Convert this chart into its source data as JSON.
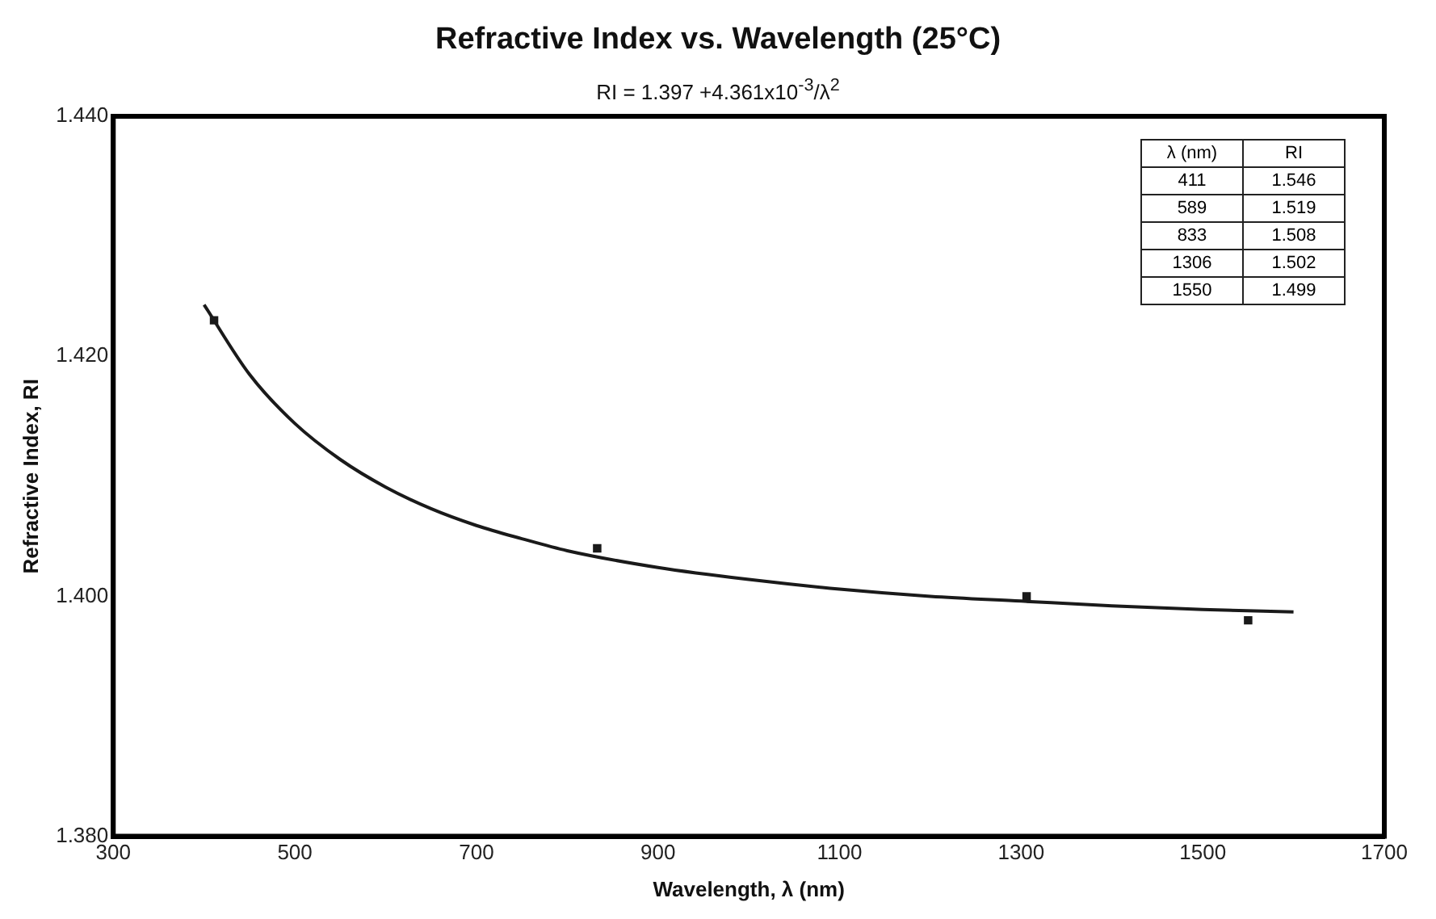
{
  "chart_data": {
    "type": "scatter",
    "title": "Refractive Index vs. Wavelength (25°C)",
    "subtitle": "RI = 1.397 +4.361x10$^{-3}$/λ$^{2}$",
    "xlabel": "Wavelength, λ (nm)",
    "ylabel": "Refractive Index, RI",
    "xlim": [
      300,
      1700
    ],
    "xticks": [
      300,
      500,
      700,
      900,
      1100,
      1300,
      1500,
      1700
    ],
    "ylim": [
      1.38,
      1.44
    ],
    "yticks": [
      {
        "value": 1.38,
        "label": "1.380"
      },
      {
        "value": 1.4,
        "label": "1.400"
      },
      {
        "value": 1.42,
        "label": "1.420"
      },
      {
        "value": 1.44,
        "label": "1.440"
      }
    ],
    "grid": false,
    "legend": false,
    "series": [
      {
        "color": "#1a1a1a",
        "marker": "square",
        "x": [
          411,
          833,
          1306,
          1550
        ],
        "values": [
          1.423,
          1.404,
          1.4,
          1.398
        ]
      },
      {
        "type": "line",
        "color": "#1a1a1a",
        "marker": "none",
        "line_style": "solid",
        "x": [
          400,
          450,
          500,
          550,
          600,
          650,
          700,
          750,
          800,
          900,
          1000,
          1100,
          1200,
          1300,
          1400,
          1500,
          1600
        ],
        "values": [
          1.4243,
          1.4185,
          1.4144,
          1.4114,
          1.4091,
          1.4073,
          1.4059,
          1.4048,
          1.4038,
          1.4024,
          1.4014,
          1.4006,
          1.4,
          1.3996,
          1.3992,
          1.3989,
          1.3987
        ]
      }
    ],
    "annotations": [
      "λ (nm)",
      "RI",
      "411",
      "1.546",
      "589",
      "1.519",
      "833",
      "1.508",
      "1306",
      "1.502",
      "1550",
      "1.499"
    ]
  }
}
